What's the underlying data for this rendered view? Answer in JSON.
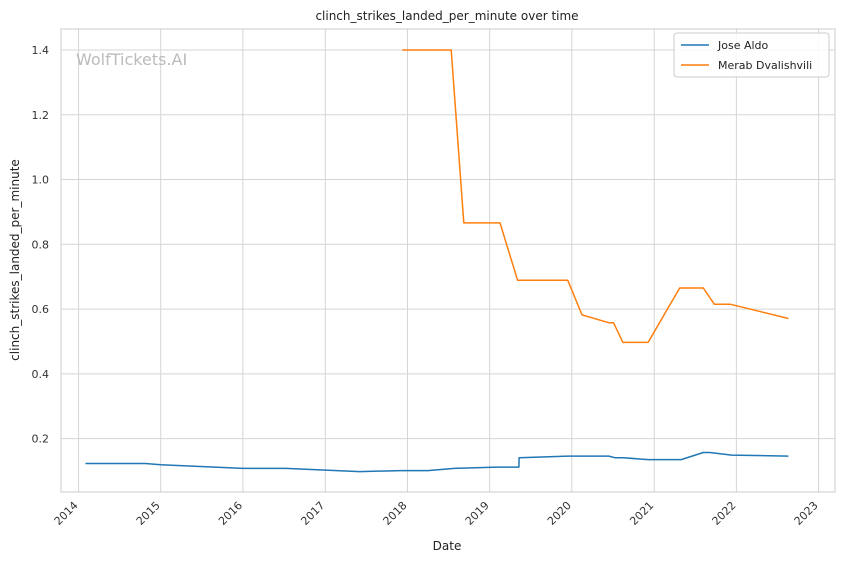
{
  "chart_data": {
    "type": "line",
    "title": "clinch_strikes_landed_per_minute over time",
    "xlabel": "Date",
    "ylabel": "clinch_strikes_landed_per_minute",
    "watermark": "WolfTickets.AI",
    "x_ticks": [
      "2014",
      "2015",
      "2016",
      "2017",
      "2018",
      "2019",
      "2020",
      "2021",
      "2022",
      "2023"
    ],
    "y_ticks": [
      "0.2",
      "0.4",
      "0.6",
      "0.8",
      "1.0",
      "1.2",
      "1.4"
    ],
    "xlim": [
      "2013-10-15",
      "2023-03-15"
    ],
    "ylim": [
      0.035,
      1.465
    ],
    "grid": true,
    "legend_position": "top-right",
    "series": [
      {
        "name": "Jose Aldo",
        "color": "#1f77b4",
        "points": [
          [
            "2014-02-01",
            0.123
          ],
          [
            "2014-10-25",
            0.123
          ],
          [
            "2015-01-01",
            0.119
          ],
          [
            "2016-01-01",
            0.108
          ],
          [
            "2016-07-09",
            0.108
          ],
          [
            "2017-06-03",
            0.098
          ],
          [
            "2017-12-02",
            0.101
          ],
          [
            "2018-04-01",
            0.101
          ],
          [
            "2018-07-28",
            0.108
          ],
          [
            "2019-02-02",
            0.112
          ],
          [
            "2019-05-11",
            0.112
          ],
          [
            "2019-05-12",
            0.141
          ],
          [
            "2019-12-14",
            0.146
          ],
          [
            "2020-06-13",
            0.146
          ],
          [
            "2020-07-11",
            0.141
          ],
          [
            "2020-08-15",
            0.141
          ],
          [
            "2020-12-05",
            0.135
          ],
          [
            "2021-05-01",
            0.135
          ],
          [
            "2021-08-07",
            0.157
          ],
          [
            "2021-09-04",
            0.157
          ],
          [
            "2021-12-11",
            0.149
          ],
          [
            "2022-08-20",
            0.146
          ]
        ]
      },
      {
        "name": "Merab Dvalishvili",
        "color": "#ff7f0e",
        "points": [
          [
            "2017-12-09",
            1.4
          ],
          [
            "2018-07-14",
            1.4
          ],
          [
            "2018-09-08",
            0.866
          ],
          [
            "2019-02-16",
            0.866
          ],
          [
            "2019-05-05",
            0.689
          ],
          [
            "2019-12-14",
            0.689
          ],
          [
            "2020-02-15",
            0.582
          ],
          [
            "2020-06-13",
            0.558
          ],
          [
            "2020-07-04",
            0.558
          ],
          [
            "2020-08-15",
            0.497
          ],
          [
            "2020-12-05",
            0.497
          ],
          [
            "2021-04-24",
            0.665
          ],
          [
            "2021-08-07",
            0.665
          ],
          [
            "2021-09-25",
            0.615
          ],
          [
            "2021-12-04",
            0.615
          ],
          [
            "2022-08-20",
            0.571
          ]
        ]
      }
    ]
  }
}
